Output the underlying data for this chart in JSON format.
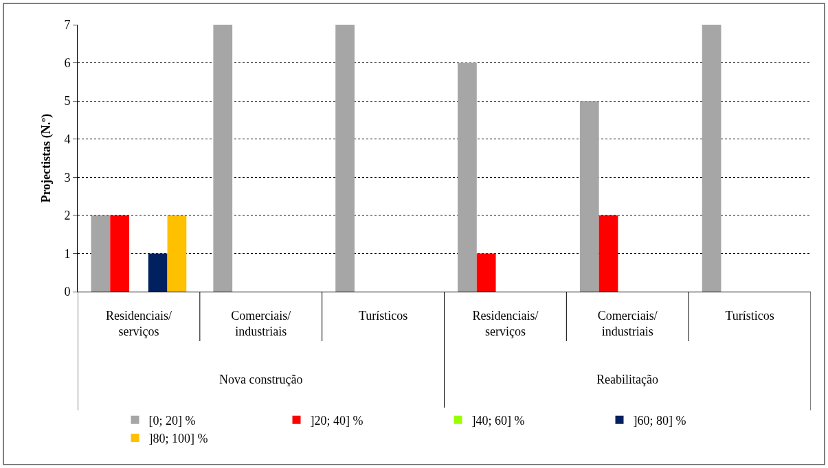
{
  "chart_data": {
    "type": "bar",
    "ylabel": "Projectistas (N.º)",
    "categories": [
      "Residenciais/\nserviços",
      "Comerciais/\nindustriais",
      "Turísticos",
      "Residenciais/\nserviços",
      "Comerciais/\nindustriais",
      "Turísticos"
    ],
    "annotations": [
      "Nova construção",
      "Reabilitação"
    ],
    "series": [
      {
        "name": "[0; 20] %",
        "color": "#a6a6a6",
        "values": [
          2,
          7,
          7,
          6,
          5,
          7
        ]
      },
      {
        "name": "]20; 40] %",
        "color": "#ff0000",
        "values": [
          2,
          0,
          0,
          1,
          2,
          0
        ]
      },
      {
        "name": "]40; 60] %",
        "color": "#99ff00",
        "values": [
          0,
          0,
          0,
          0,
          0,
          0
        ]
      },
      {
        "name": "]60; 80] %",
        "color": "#002060",
        "values": [
          1,
          0,
          0,
          0,
          0,
          0
        ]
      },
      {
        "name": "]80; 100] %",
        "color": "#ffc000",
        "values": [
          2,
          0,
          0,
          0,
          0,
          0
        ]
      }
    ],
    "ylim": [
      0,
      7
    ],
    "yticks": [
      0,
      1,
      2,
      3,
      4,
      5,
      6,
      7
    ],
    "grid": "y",
    "legend": "bottom"
  }
}
